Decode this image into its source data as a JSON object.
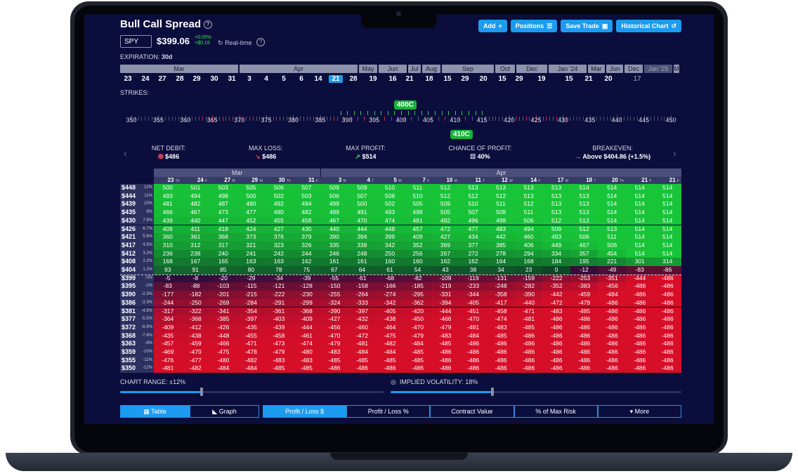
{
  "header": {
    "title": "Bull Call Spread",
    "help_icon": "?",
    "buttons": [
      {
        "label": "Add",
        "icon": "+"
      },
      {
        "label": "Positions",
        "icon": "☰"
      },
      {
        "label": "Save Trade",
        "icon": "▣"
      },
      {
        "label": "Historical Chart",
        "icon": "↺"
      }
    ]
  },
  "quote": {
    "ticker": "SPY",
    "price": "$399.06",
    "change_pct": "+0.05%",
    "change_abs": "+$0.19",
    "mode": "Real-time"
  },
  "expiration": {
    "label": "EXPIRATION:",
    "value": "30d",
    "months": [
      "Mar",
      "Apr",
      "May",
      "Jun",
      "Jul",
      "Aug",
      "Sep",
      "Oct",
      "Dec",
      "Jan '24",
      "Mar",
      "Jun",
      "Dec",
      "Jan '25",
      "M"
    ],
    "days": [
      "23",
      "24",
      "27",
      "28",
      "29",
      "30",
      "31",
      "3",
      "4",
      "5",
      "6",
      "14",
      "21",
      "28",
      "19",
      "16",
      "21",
      "18",
      "15",
      "29",
      "20",
      "15",
      "29",
      "19",
      "15",
      "21",
      "20",
      "17"
    ],
    "selected_day": "21"
  },
  "strikes": {
    "label": "STRIKES:",
    "ticks": [
      "350",
      "355",
      "360",
      "365",
      "370",
      "375",
      "380",
      "385",
      "390",
      "395",
      "400",
      "405",
      "410",
      "415",
      "420",
      "425",
      "430",
      "435",
      "440",
      "445",
      "450"
    ],
    "long_leg": "400C",
    "short_leg": "410C"
  },
  "stats": [
    {
      "label": "NET DEBIT:",
      "value": "$486",
      "icon": "coins-icon"
    },
    {
      "label": "MAX LOSS:",
      "value": "$486",
      "icon": "arrow-down-icon"
    },
    {
      "label": "MAX PROFIT:",
      "value": "$514",
      "icon": "arrow-up-icon"
    },
    {
      "label": "CHANCE OF PROFIT:",
      "value": "40%",
      "icon": "dice-icon"
    },
    {
      "label": "BREAKEVEN:",
      "value": "Above $404.86 (+1.5%)",
      "icon": "arrow-right-icon"
    }
  ],
  "table": {
    "months": [
      {
        "label": "Mar",
        "span": 6
      },
      {
        "label": "Apr",
        "span": 13
      }
    ],
    "dates": [
      {
        "d": "23",
        "w": "Th"
      },
      {
        "d": "24",
        "w": "F"
      },
      {
        "d": "27",
        "w": "M"
      },
      {
        "d": "29",
        "w": "W"
      },
      {
        "d": "30",
        "w": "Th"
      },
      {
        "d": "31",
        "w": "F"
      },
      {
        "d": "3",
        "w": "M"
      },
      {
        "d": "4",
        "w": "T"
      },
      {
        "d": "5",
        "w": "W"
      },
      {
        "d": "7",
        "w": "F"
      },
      {
        "d": "10",
        "w": "M"
      },
      {
        "d": "11",
        "w": "T"
      },
      {
        "d": "12",
        "w": "W"
      },
      {
        "d": "14",
        "w": "F"
      },
      {
        "d": "17",
        "w": "M"
      },
      {
        "d": "18",
        "w": "T"
      },
      {
        "d": "20",
        "w": "Th"
      },
      {
        "d": "21",
        "w": "F"
      },
      {
        "d": "21",
        "w": "F"
      }
    ],
    "rows": [
      {
        "p": "$448",
        "c": "12%",
        "v": [
          500,
          501,
          503,
          505,
          506,
          507,
          509,
          509,
          510,
          511,
          512,
          513,
          513,
          513,
          513,
          514,
          514,
          514,
          514
        ]
      },
      {
        "p": "$444",
        "c": "11%",
        "v": [
          493,
          494,
          498,
          500,
          502,
          503,
          506,
          507,
          508,
          510,
          512,
          512,
          512,
          513,
          513,
          513,
          514,
          514,
          514
        ]
      },
      {
        "p": "$439",
        "c": "10%",
        "v": [
          481,
          482,
          487,
          490,
          492,
          494,
          499,
          500,
          502,
          505,
          509,
          510,
          511,
          512,
          513,
          513,
          514,
          514,
          514
        ]
      },
      {
        "p": "$435",
        "c": "9%",
        "v": [
          466,
          467,
          473,
          477,
          480,
          482,
          489,
          491,
          493,
          498,
          505,
          507,
          508,
          511,
          513,
          513,
          514,
          514,
          514
        ]
      },
      {
        "p": "$430",
        "c": "7.8%",
        "v": [
          439,
          440,
          447,
          452,
          455,
          458,
          467,
          470,
          474,
          481,
          492,
          496,
          499,
          506,
          512,
          513,
          514,
          514,
          514
        ]
      },
      {
        "p": "$426",
        "c": "6.7%",
        "v": [
          409,
          411,
          418,
          424,
          427,
          430,
          440,
          444,
          448,
          457,
          472,
          477,
          483,
          494,
          509,
          512,
          513,
          514,
          514
        ]
      },
      {
        "p": "$421",
        "c": "5.6%",
        "v": [
          360,
          361,
          368,
          373,
          376,
          379,
          390,
          394,
          399,
          409,
          427,
          434,
          442,
          460,
          493,
          506,
          511,
          514,
          514
        ]
      },
      {
        "p": "$417",
        "c": "4.5%",
        "v": [
          310,
          312,
          317,
          321,
          323,
          326,
          335,
          338,
          342,
          352,
          369,
          377,
          385,
          406,
          449,
          467,
          506,
          514,
          514
        ]
      },
      {
        "p": "$412",
        "c": "3.2%",
        "v": [
          236,
          238,
          240,
          241,
          242,
          244,
          246,
          248,
          250,
          256,
          267,
          272,
          278,
          294,
          334,
          357,
          454,
          514,
          514
        ]
      },
      {
        "p": "$408",
        "c": "2.2%",
        "v": [
          168,
          167,
          165,
          163,
          163,
          162,
          161,
          161,
          160,
          160,
          162,
          162,
          164,
          168,
          184,
          195,
          221,
          301,
          314
        ]
      },
      {
        "p": "$404",
        "c": "1.2%",
        "v": [
          93,
          91,
          85,
          80,
          78,
          75,
          67,
          64,
          61,
          54,
          43,
          38,
          34,
          23,
          0,
          -12,
          -49,
          -83,
          -86
        ]
      },
      {
        "p": "$399",
        "c": "-0%",
        "v": [
          -5,
          -8,
          -20,
          -29,
          -34,
          -39,
          -55,
          -61,
          -68,
          -82,
          -109,
          -119,
          -131,
          -159,
          -222,
          -253,
          -351,
          -444,
          -486
        ]
      },
      {
        "p": "$395",
        "c": "-1%",
        "v": [
          -83,
          -88,
          -103,
          -115,
          -121,
          -128,
          -150,
          -158,
          -166,
          -185,
          -219,
          -233,
          -248,
          -282,
          -352,
          -383,
          -456,
          -486,
          -486
        ]
      },
      {
        "p": "$390",
        "c": "-2.3%",
        "v": [
          -177,
          -182,
          -201,
          -215,
          -222,
          -230,
          -255,
          -264,
          -274,
          -295,
          -331,
          -344,
          -358,
          -390,
          -442,
          -459,
          -484,
          -486,
          -486
        ]
      },
      {
        "p": "$386",
        "c": "-3.3%",
        "v": [
          -244,
          -250,
          -269,
          -284,
          -291,
          -299,
          -324,
          -333,
          -342,
          -362,
          -394,
          -405,
          -417,
          -440,
          -472,
          -479,
          -486,
          -486,
          -486
        ]
      },
      {
        "p": "$381",
        "c": "-4.5%",
        "v": [
          -317,
          -322,
          -341,
          -354,
          -361,
          -368,
          -390,
          -397,
          -405,
          -420,
          -444,
          -451,
          -458,
          -471,
          -483,
          -485,
          -486,
          -486,
          -486
        ]
      },
      {
        "p": "$377",
        "c": "-5.5%",
        "v": [
          -364,
          -368,
          -385,
          -397,
          -403,
          -409,
          -427,
          -432,
          -438,
          -450,
          -466,
          -470,
          -474,
          -481,
          -486,
          -486,
          -486,
          -486,
          -486
        ]
      },
      {
        "p": "$372",
        "c": "-6.8%",
        "v": [
          -409,
          -412,
          -426,
          -435,
          -439,
          -444,
          -456,
          -460,
          -464,
          -470,
          -479,
          -481,
          -483,
          -485,
          -486,
          -486,
          -486,
          -486,
          -486
        ]
      },
      {
        "p": "$368",
        "c": "-7.8%",
        "v": [
          -435,
          -438,
          -448,
          -455,
          -458,
          -461,
          -470,
          -472,
          -475,
          -479,
          -483,
          -484,
          -485,
          -486,
          -486,
          -486,
          -486,
          -486,
          -486
        ]
      },
      {
        "p": "$363",
        "c": "-9%",
        "v": [
          -457,
          -459,
          -466,
          -471,
          -473,
          -474,
          -479,
          -481,
          -482,
          -484,
          -485,
          -486,
          -486,
          -486,
          -486,
          -486,
          -486,
          -486,
          -486
        ]
      },
      {
        "p": "$359",
        "c": "-10%",
        "v": [
          -469,
          -470,
          -475,
          -478,
          -479,
          -480,
          -483,
          -484,
          -484,
          -485,
          -486,
          -486,
          -486,
          -486,
          -486,
          -486,
          -486,
          -486,
          -486
        ]
      },
      {
        "p": "$355",
        "c": "-11%",
        "v": [
          -476,
          -477,
          -480,
          -482,
          -483,
          -483,
          -485,
          -485,
          -485,
          -485,
          -486,
          -486,
          -486,
          -486,
          -486,
          -486,
          -486,
          -486,
          -486
        ]
      },
      {
        "p": "$350",
        "c": "-12%",
        "v": [
          -481,
          -482,
          -484,
          -484,
          -485,
          -485,
          -486,
          -486,
          -486,
          -486,
          -486,
          -486,
          -486,
          -486,
          -486,
          -486,
          -486,
          -486,
          -486
        ]
      }
    ]
  },
  "controls": {
    "chart_range": "CHART RANGE: ±12%",
    "chart_range_level": 0.31,
    "iv": "IMPLIED VOLATILITY: 18%",
    "iv_level": 0.35,
    "view_tabs": [
      "Table",
      "Graph"
    ],
    "metric_tabs": [
      "Profit / Loss $",
      "Profit / Loss %",
      "Contract Value",
      "% of Max Risk",
      "▾ More"
    ]
  },
  "colors": {
    "profit": "#1fb83a",
    "loss": "#d0102a",
    "accent": "#1d9bf0"
  }
}
